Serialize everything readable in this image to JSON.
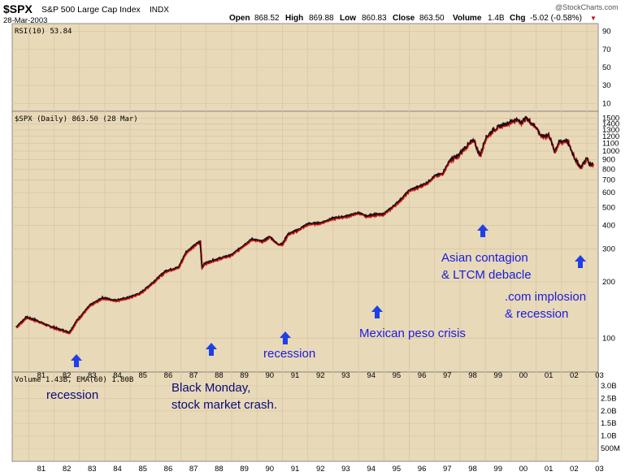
{
  "header": {
    "symbol": "$SPX",
    "name": "S&P 500 Large Cap Index",
    "exchange": "INDX",
    "date": "28-Mar-2003",
    "open_label": "Open",
    "open": "868.52",
    "high_label": "High",
    "high": "869.88",
    "low_label": "Low",
    "low": "860.83",
    "close_label": "Close",
    "close": "863.50",
    "volume_label": "Volume",
    "volume": "1.4B",
    "chg_label": "Chg",
    "chg": "-5.02 (-0.58%)",
    "chg_arrow": "▼",
    "brand": "@StockCharts.com"
  },
  "panels": {
    "rsi_label": "RSI(10) 53.84",
    "price_label": "$SPX (Daily) 863.50 (28 Mar)",
    "volume_label": "Volume 1.43B, EMA(60) 1.80B"
  },
  "colors": {
    "panel_bg": "#e8d9b8",
    "grid": "#d8c6a3",
    "price": "#111111",
    "price_shadow": "#cc1111",
    "annotation": "#1a1adf",
    "arrow": "#1f3fe8"
  },
  "chart_data": {
    "type": "line",
    "title": "$SPX (Daily) 863.50 (28 Mar)",
    "xlabel": "",
    "ylabel": "",
    "x_ticks": [
      "81",
      "82",
      "83",
      "84",
      "85",
      "86",
      "87",
      "88",
      "89",
      "90",
      "91",
      "92",
      "93",
      "94",
      "95",
      "96",
      "97",
      "98",
      "99",
      "00",
      "01",
      "02",
      "03"
    ],
    "y_ticks": [
      100,
      200,
      300,
      400,
      500,
      600,
      700,
      800,
      900,
      1000,
      1100,
      1200,
      1300,
      1400,
      1500
    ],
    "ylim": [
      70,
      1600
    ],
    "rsi_ticks": [
      10,
      30,
      50,
      70,
      90
    ],
    "volume_ticks": [
      "3.0B",
      "2.5B",
      "2.0B",
      "1.5B",
      "1.0B",
      "500M"
    ],
    "series": [
      {
        "name": "S&P 500",
        "x": [
          1980.5,
          1980.9,
          1981.3,
          1981.7,
          1982.2,
          1982.6,
          1982.9,
          1983.4,
          1983.9,
          1984.4,
          1984.9,
          1985.4,
          1985.9,
          1986.4,
          1986.9,
          1987.2,
          1987.6,
          1987.75,
          1987.82,
          1987.9,
          1988.2,
          1988.6,
          1989.0,
          1989.4,
          1989.8,
          1990.2,
          1990.5,
          1990.8,
          1991.0,
          1991.2,
          1991.6,
          1992.0,
          1992.5,
          1993.0,
          1993.5,
          1994.0,
          1994.3,
          1994.6,
          1994.95,
          1995.3,
          1995.7,
          1996.0,
          1996.4,
          1996.7,
          1997.0,
          1997.3,
          1997.6,
          1997.9,
          1998.2,
          1998.55,
          1998.7,
          1998.8,
          1999.0,
          1999.3,
          1999.6,
          1999.9,
          2000.2,
          2000.4,
          2000.6,
          2000.8,
          2001.0,
          2001.2,
          2001.5,
          2001.72,
          2001.9,
          2002.2,
          2002.4,
          2002.55,
          2002.75,
          2002.9,
          2003.0,
          2003.1,
          2003.24
        ],
        "values": [
          115,
          130,
          125,
          118,
          112,
          108,
          125,
          150,
          165,
          160,
          165,
          175,
          200,
          230,
          240,
          290,
          320,
          330,
          240,
          250,
          260,
          270,
          280,
          310,
          340,
          330,
          350,
          320,
          320,
          360,
          380,
          410,
          415,
          440,
          450,
          470,
          450,
          460,
          460,
          500,
          560,
          620,
          650,
          680,
          740,
          760,
          900,
          940,
          1050,
          1150,
          1000,
          960,
          1180,
          1300,
          1370,
          1420,
          1480,
          1430,
          1510,
          1420,
          1350,
          1200,
          1220,
          1000,
          1120,
          1150,
          1000,
          900,
          820,
          880,
          920,
          850,
          863.5
        ]
      }
    ]
  },
  "annotations": [
    {
      "id": "recession-82",
      "lines": [
        "recession"
      ]
    },
    {
      "id": "black-monday",
      "lines": [
        "Black Monday,",
        "stock market crash."
      ]
    },
    {
      "id": "recession-90",
      "lines": [
        "recession"
      ]
    },
    {
      "id": "mexican-peso",
      "lines": [
        "Mexican peso crisis"
      ]
    },
    {
      "id": "asian-contagion",
      "lines": [
        "Asian contagion",
        "& LTCM debacle"
      ]
    },
    {
      "id": "com-implosion",
      "lines": [
        ".com implosion",
        "& recession"
      ]
    }
  ]
}
